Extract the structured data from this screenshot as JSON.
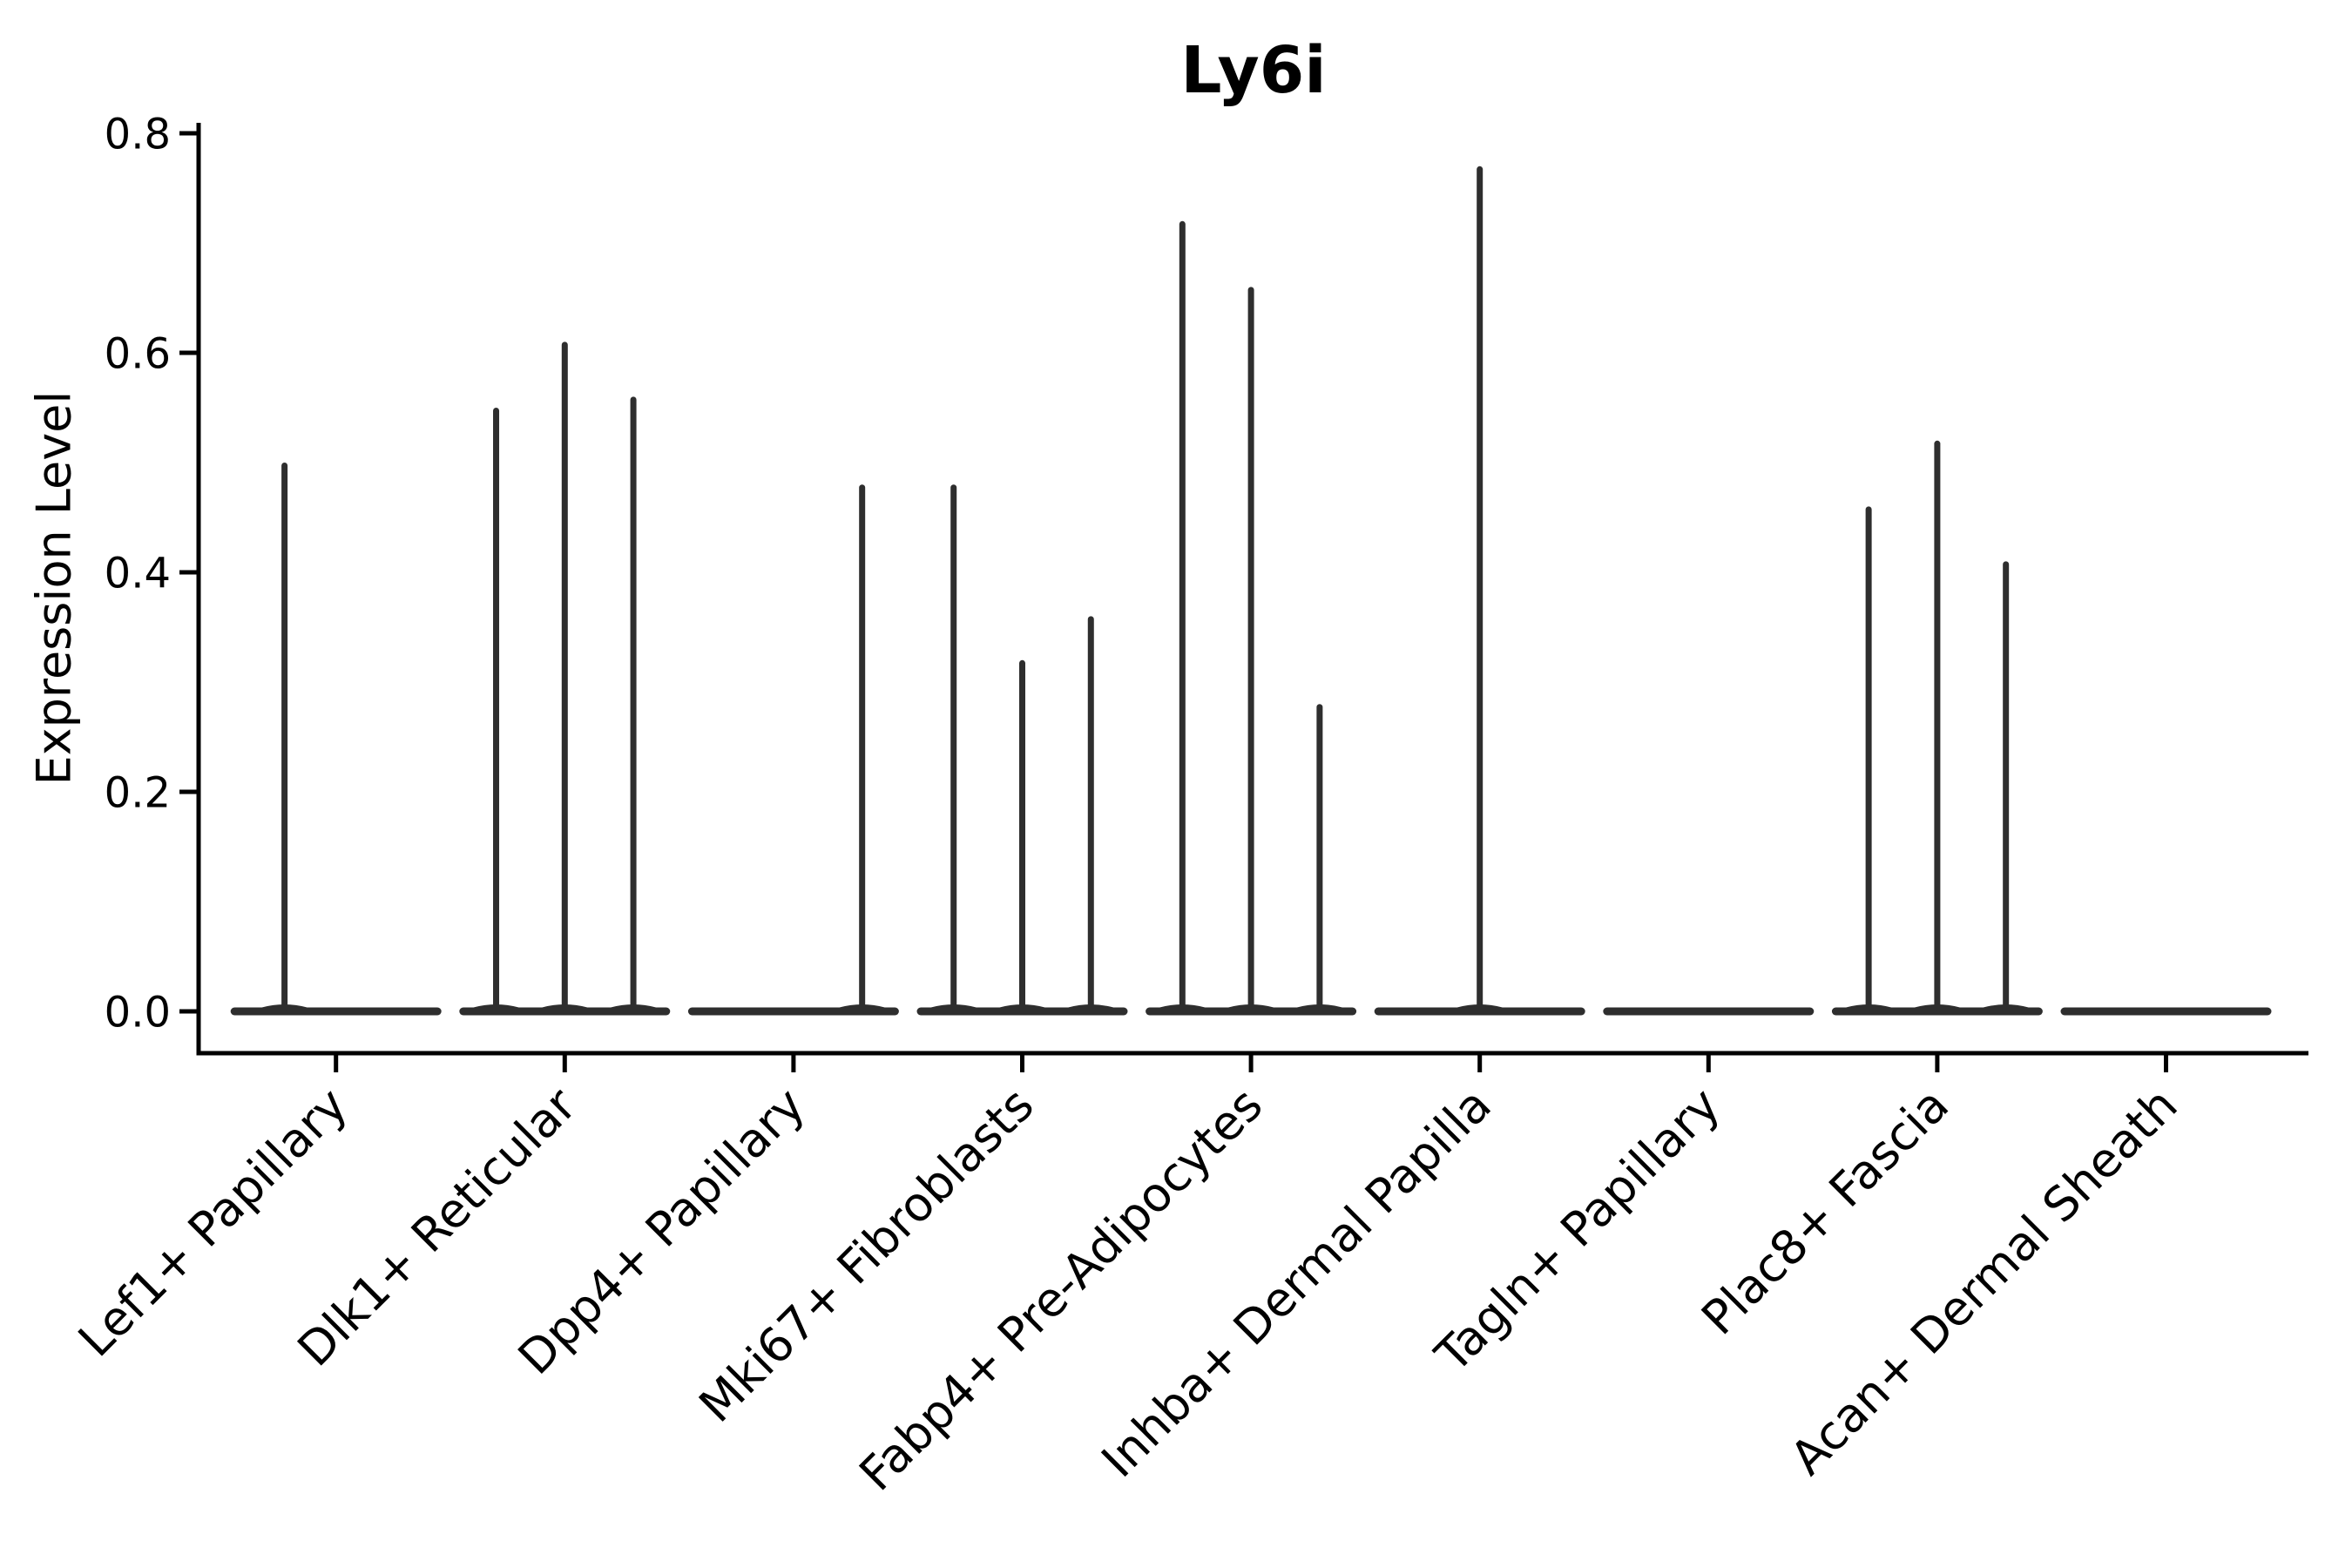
{
  "chart_data": {
    "type": "violin",
    "title": "Ly6i",
    "xlabel": "",
    "ylabel": "Expression Level",
    "ylim": [
      -0.038,
      0.85
    ],
    "yticks": [
      0,
      0.2,
      0.4,
      0.6,
      0.8
    ],
    "ytick_labels": [
      "0.0",
      "0.2",
      "0.4",
      "0.6",
      "0.8"
    ],
    "grid": false,
    "legend": "none",
    "violin_color": "#2e2e2e",
    "axis_color": "#000000",
    "categories": [
      "Lef1+ Papillary",
      "Dlk1+ Reticular",
      "Dpp4+ Papillary",
      "Mki67+ Fibroblasts",
      "Fabp4+ Pre-Adipocytes",
      "Inhba+ Dermal Papilla",
      "Tagln+ Papillary",
      "Plac8+ Fascia",
      "Acan+ Dermal Sheath"
    ],
    "violins": [
      {
        "category": "Lef1+ Papillary",
        "spikes": [
          {
            "offset": -0.225,
            "value": 0.5
          }
        ]
      },
      {
        "category": "Dlk1+ Reticular",
        "spikes": [
          {
            "offset": -0.3,
            "value": 0.55
          },
          {
            "offset": 0,
            "value": 0.61
          },
          {
            "offset": 0.3,
            "value": 0.56
          }
        ]
      },
      {
        "category": "Dpp4+ Papillary",
        "spikes": [
          {
            "offset": 0.3,
            "value": 0.48
          }
        ]
      },
      {
        "category": "Mki67+ Fibroblasts",
        "spikes": [
          {
            "offset": -0.3,
            "value": 0.48
          },
          {
            "offset": 0,
            "value": 0.32
          },
          {
            "offset": 0.3,
            "value": 0.36
          }
        ]
      },
      {
        "category": "Fabp4+ Pre-Adipocytes",
        "spikes": [
          {
            "offset": -0.3,
            "value": 0.72
          },
          {
            "offset": 0,
            "value": 0.66
          },
          {
            "offset": 0.3,
            "value": 0.28
          }
        ]
      },
      {
        "category": "Inhba+ Dermal Papilla",
        "spikes": [
          {
            "offset": 0,
            "value": 0.77
          }
        ]
      },
      {
        "category": "Tagln+ Papillary",
        "spikes": []
      },
      {
        "category": "Plac8+ Fascia",
        "spikes": [
          {
            "offset": -0.3,
            "value": 0.46
          },
          {
            "offset": 0,
            "value": 0.52
          },
          {
            "offset": 0.3,
            "value": 0.41
          }
        ]
      },
      {
        "category": "Acan+ Dermal Sheath",
        "spikes": []
      }
    ]
  }
}
